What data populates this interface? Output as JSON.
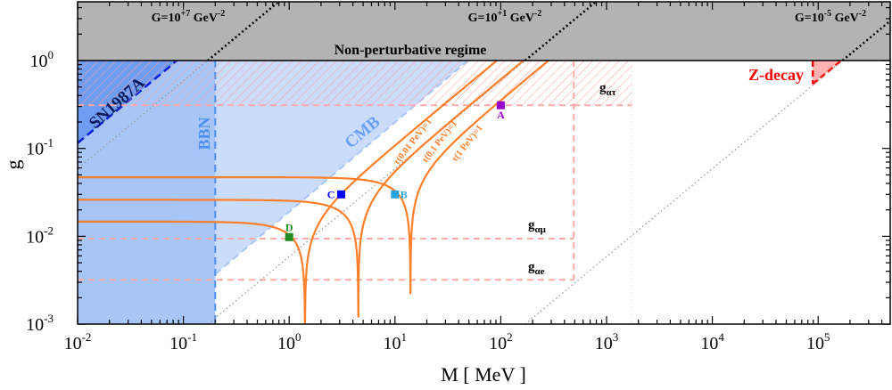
{
  "chart_data": {
    "type": "line",
    "xlabel": "M [ MeV ]",
    "ylabel": "g",
    "xscale": "log",
    "yscale": "log",
    "xlim": [
      0.01,
      480000
    ],
    "ylim": [
      0.001,
      4.6
    ],
    "x_tick_base": "10",
    "x_tick_exponents": [
      "-2",
      "-1",
      "0",
      "1",
      "2",
      "3",
      "4",
      "5"
    ],
    "y_tick_base": "10",
    "y_tick_exponents": [
      "-3",
      "-2",
      "-1",
      "0"
    ],
    "regions": {
      "non_perturbative": {
        "label": "Non-perturbative regime",
        "g_min": 1,
        "color": "#b3b3b3"
      },
      "sn1987a": {
        "label": "SN1987A",
        "boundary": [
          [
            0.01,
            0.115
          ],
          [
            0.087,
            1
          ]
        ],
        "color": "#6e9df2",
        "line_color": "#0a1fd6"
      },
      "bbn": {
        "label": "BBN",
        "M_max": 0.2,
        "color": "#a8c5f7",
        "line_color": "#4d8ff0"
      },
      "cmb": {
        "label": "CMB",
        "boundary": [
          [
            0.2,
            0.0037
          ],
          [
            49,
            1
          ]
        ],
        "color": "#cadcfa",
        "line_color": "#a8c5f7"
      },
      "z_decay": {
        "label": "Z-decay",
        "vertices": [
          [
            89000,
            1
          ],
          [
            166000,
            1
          ],
          [
            89000,
            0.54
          ]
        ],
        "color": "#ffb3b3",
        "line_color": "#ff0000"
      }
    },
    "coupling_limits": [
      {
        "label": "g",
        "sub": "ατ",
        "g": 0.31,
        "M_max": 490,
        "hatched_to": 1740
      },
      {
        "label": "g",
        "sub": "αμ",
        "g": 0.0094,
        "M_max": 490
      },
      {
        "label": "g",
        "sub": "αe",
        "g": 0.0032,
        "M_max": 490
      }
    ],
    "G_lines": [
      {
        "prefix": "G=10",
        "exp": "+7",
        "unit": " GeV",
        "unit_exp": "-2",
        "M_at_g1": 0.17
      },
      {
        "prefix": "G=10",
        "exp": "+1",
        "unit": " GeV",
        "unit_exp": "-2",
        "M_at_g1": 170
      },
      {
        "prefix": "G=10",
        "exp": "-5",
        "unit": " GeV",
        "unit_exp": "-2",
        "M_at_g1": 170000
      }
    ],
    "resonance_curves": [
      {
        "M0": 1.41,
        "g_flat": 0.0147,
        "g_min": 0.001,
        "slope": 0.0109,
        "label": "τ(0.01 PeV)=1"
      },
      {
        "M0": 4.5,
        "g_flat": 0.026,
        "g_min": 0.0012,
        "slope": 0.0061,
        "label": "τ(0.1 PeV)=1"
      },
      {
        "M0": 14,
        "g_flat": 0.047,
        "g_min": 0.0022,
        "slope": 0.00355,
        "label": "τ(1 PeV)=1"
      }
    ],
    "curve_color": "#ff7f2a",
    "points": [
      {
        "label": "A",
        "M": 100,
        "g": 0.31,
        "color": "#9900cc"
      },
      {
        "label": "B",
        "M": 10,
        "g": 0.03,
        "color": "#29a3e0"
      },
      {
        "label": "C",
        "M": 3.1,
        "g": 0.03,
        "color": "#0000ff"
      },
      {
        "label": "D",
        "M": 1.0,
        "g": 0.0098,
        "color": "#228b22"
      }
    ]
  }
}
